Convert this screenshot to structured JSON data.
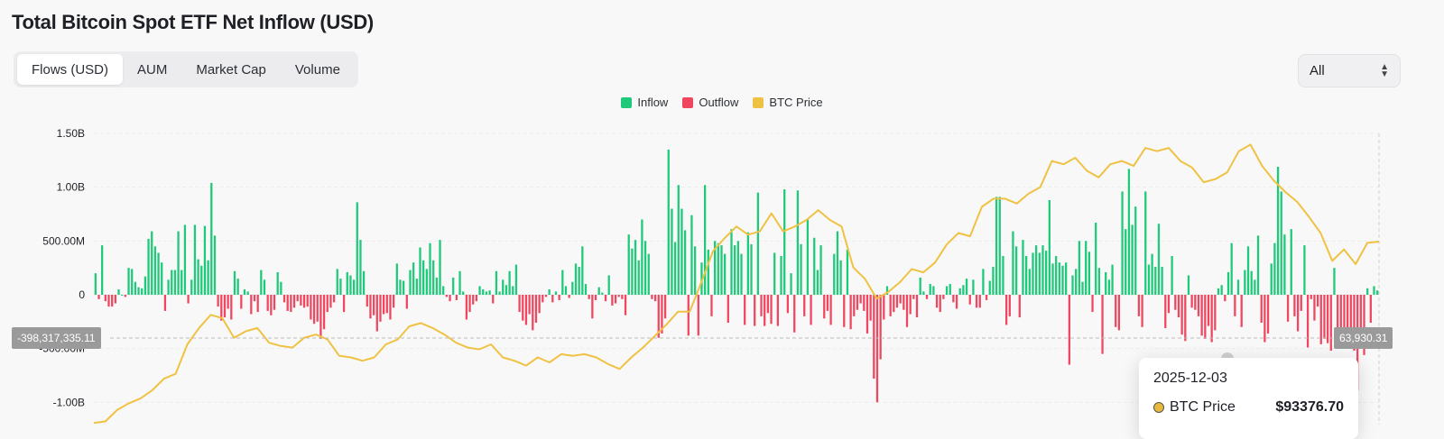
{
  "header": {
    "title": "Total Bitcoin Spot ETF Net Inflow (USD)"
  },
  "tabs": [
    {
      "label": "Flows (USD)",
      "active": true
    },
    {
      "label": "AUM",
      "active": false
    },
    {
      "label": "Market Cap",
      "active": false
    },
    {
      "label": "Volume",
      "active": false
    }
  ],
  "range_select": {
    "value": "All"
  },
  "legend": [
    {
      "label": "Inflow",
      "color": "#1ec97a"
    },
    {
      "label": "Outflow",
      "color": "#ef4760"
    },
    {
      "label": "BTC Price",
      "color": "#f0c244"
    }
  ],
  "crosshair": {
    "left_label": "-398,317,335.11",
    "right_label": "63,930.31"
  },
  "tooltip": {
    "date": "2025-12-03",
    "series": "BTC Price",
    "value": "$93376.70"
  },
  "chart_data": {
    "type": "bar",
    "title": "Total Bitcoin Spot ETF Net Inflow (USD)",
    "y_ticks": [
      "1.50B",
      "1.00B",
      "500.00M",
      "0",
      "-500.00M",
      "-1.00B"
    ],
    "ylim": [
      -1000000000,
      1500000000
    ],
    "grid": true,
    "legend_position": "top-center",
    "series": [
      {
        "name": "Inflow / Outflow",
        "unit": "USD",
        "values_millions": [
          200,
          -40,
          460,
          -60,
          -110,
          -110,
          -80,
          50,
          0,
          -20,
          250,
          240,
          120,
          70,
          60,
          170,
          520,
          590,
          450,
          390,
          300,
          -150,
          140,
          230,
          230,
          590,
          230,
          650,
          -80,
          140,
          650,
          330,
          270,
          640,
          320,
          1040,
          550,
          -110,
          -240,
          -210,
          -130,
          -230,
          220,
          150,
          -130,
          50,
          30,
          -180,
          -60,
          -160,
          230,
          140,
          -150,
          -190,
          -140,
          210,
          120,
          -70,
          -150,
          -160,
          -120,
          -60,
          -100,
          -120,
          -110,
          -230,
          -270,
          -250,
          -410,
          -320,
          -160,
          -120,
          -70,
          240,
          150,
          -160,
          210,
          180,
          140,
          860,
          510,
          220,
          -110,
          -220,
          -190,
          -340,
          -250,
          -180,
          -170,
          -230,
          -120,
          290,
          140,
          130,
          -130,
          230,
          300,
          150,
          440,
          320,
          240,
          480,
          320,
          160,
          510,
          80,
          -20,
          -60,
          160,
          -50,
          220,
          30,
          -230,
          -160,
          -90,
          -60,
          80,
          50,
          30,
          40,
          -80,
          220,
          30,
          140,
          90,
          220,
          80,
          280,
          -160,
          -240,
          -280,
          -180,
          -330,
          -260,
          -170,
          -70,
          -20,
          50,
          -70,
          30,
          -50,
          230,
          80,
          -30,
          120,
          290,
          260,
          450,
          100,
          -40,
          -220,
          -50,
          70,
          20,
          -60,
          180,
          -100,
          -80,
          -20,
          -40,
          -190,
          560,
          430,
          510,
          320,
          700,
          500,
          380,
          -40,
          -60,
          -400,
          -360,
          -220,
          1350,
          800,
          490,
          1020,
          800,
          600,
          -380,
          740,
          450,
          -380,
          300,
          1020,
          420,
          -200,
          500,
          480,
          460,
          380,
          -260,
          610,
          460,
          500,
          380,
          -280,
          580,
          470,
          -290,
          950,
          -200,
          -290,
          -170,
          -270,
          390,
          -290,
          360,
          980,
          -170,
          200,
          -350,
          970,
          470,
          -200,
          700,
          -280,
          530,
          230,
          460,
          -220,
          -150,
          -280,
          380,
          590,
          320,
          -300,
          420,
          -320,
          -200,
          -140,
          -80,
          -150,
          -360,
          -240,
          -780,
          -1000,
          -600,
          -230,
          80,
          -200,
          -160,
          -120,
          -80,
          -140,
          -300,
          -180,
          -40,
          -210,
          160,
          30,
          -40,
          100,
          80,
          -120,
          -160,
          -40,
          80,
          100,
          -70,
          -130,
          60,
          90,
          150,
          -90,
          140,
          -120,
          -120,
          240,
          -50,
          130,
          260,
          910,
          910,
          360,
          -280,
          -200,
          590,
          450,
          -210,
          510,
          360,
          240,
          390,
          460,
          390,
          460,
          410,
          880,
          290,
          360,
          300,
          270,
          300,
          -650,
          180,
          240,
          500,
          120,
          500,
          400,
          -160,
          670,
          250,
          -550,
          210,
          140,
          280,
          -300,
          -330,
          960,
          610,
          1170,
          650,
          820,
          -200,
          -300,
          960,
          280,
          380,
          260,
          660,
          260,
          -310,
          -170,
          360,
          -140,
          -210,
          -370,
          -430,
          180,
          -120,
          -140,
          -200,
          -380,
          -410,
          -290,
          -440,
          -330,
          60,
          90,
          -60,
          210,
          480,
          -200,
          140,
          -300,
          230,
          450,
          220,
          140,
          550,
          -260,
          -440,
          -360,
          290,
          480,
          1190,
          960,
          560,
          -250,
          610,
          -200,
          -340,
          -150,
          460,
          -490,
          -40,
          -240,
          -110,
          -460,
          -410,
          -450,
          -520,
          250,
          -320,
          -420,
          -380,
          -430,
          -310,
          -520,
          -890,
          -360,
          -560,
          60,
          -260,
          80,
          40
        ]
      },
      {
        "name": "BTC Price",
        "unit": "USD",
        "values": [
          38000,
          38500,
          42000,
          44000,
          45500,
          48000,
          51500,
          53000,
          62000,
          67000,
          71000,
          70000,
          64000,
          66000,
          67000,
          62500,
          61500,
          61000,
          64000,
          65000,
          63500,
          58500,
          58000,
          57000,
          58000,
          62000,
          63500,
          67500,
          68500,
          67000,
          65000,
          62500,
          61000,
          60500,
          62000,
          58000,
          57000,
          55500,
          58000,
          56500,
          59000,
          58500,
          59000,
          58000,
          56000,
          54500,
          58000,
          61000,
          64500,
          68000,
          72000,
          72000,
          81000,
          90500,
          94500,
          98000,
          95500,
          96500,
          102000,
          96500,
          98000,
          100000,
          103000,
          100000,
          98000,
          85500,
          82000,
          76000,
          78000,
          81000,
          85000,
          84000,
          87000,
          92500,
          96000,
          95000,
          104000,
          106500,
          106500,
          105000,
          108000,
          110000,
          118000,
          117000,
          119000,
          115000,
          113000,
          117000,
          118000,
          116500,
          122000,
          121000,
          122000,
          118000,
          116000,
          111500,
          112500,
          114500,
          121000,
          123000,
          116500,
          112000,
          108500,
          105500,
          101000,
          96000,
          87500,
          91000,
          86500,
          93000,
          93376.7
        ]
      }
    ]
  }
}
